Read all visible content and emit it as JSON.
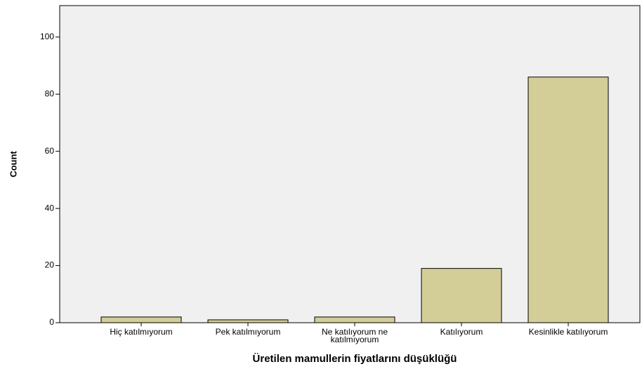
{
  "chart_data": {
    "type": "bar",
    "categories": [
      "Hiç katılmıyorum",
      "Pek katılmıyorum",
      "Ne katılıyorum ne katılmıyorum",
      "Katılıyorum",
      "Kesinlikle katılıyorum"
    ],
    "values": [
      2,
      1,
      2,
      19,
      86
    ],
    "color": "#d3ce97",
    "y_label": "Count",
    "x_label": "Üretilen mamullerin fiyatlarını düşüklüğü",
    "ylim": [
      0,
      111
    ],
    "yticks": [
      0,
      20,
      40,
      60,
      80,
      100
    ],
    "grid": false
  }
}
